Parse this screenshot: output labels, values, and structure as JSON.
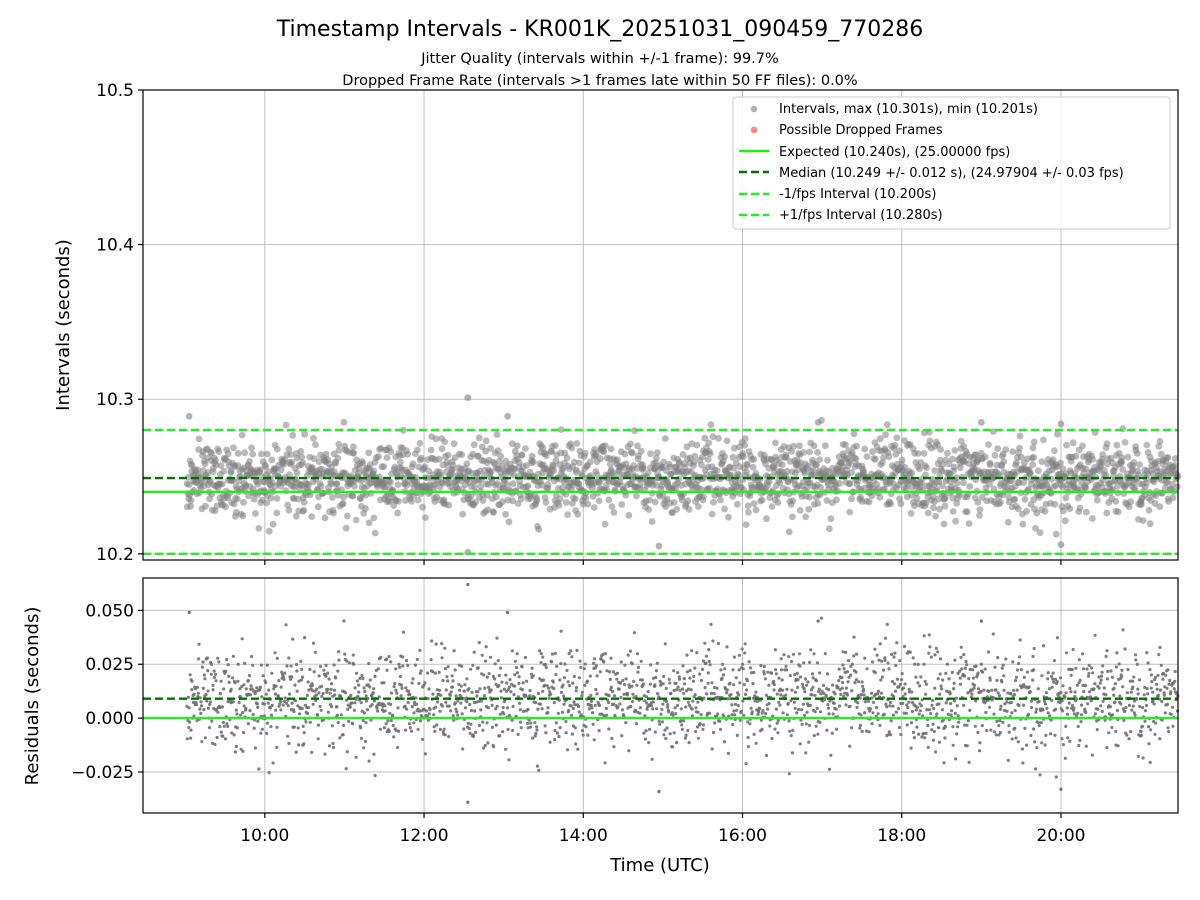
{
  "chart_data": [
    {
      "type": "scatter",
      "title": "Timestamp Intervals - KR001K_20251031_090459_770286",
      "subtitle_lines": [
        "Jitter Quality (intervals within +/-1 frame): 99.7%",
        "Dropped Frame Rate (intervals >1 frames late within 50 FF files): 0.0%"
      ],
      "ylabel": "Intervals (seconds)",
      "xlabel": "",
      "x_unit": "hours UTC",
      "xlim": [
        8.47,
        21.47
      ],
      "ylim": [
        10.196,
        10.5
      ],
      "yticks": [
        10.2,
        10.3,
        10.4,
        10.5
      ],
      "ytick_labels": [
        "10.2",
        "10.3",
        "10.4",
        "10.5"
      ],
      "grid": true,
      "legend_position": "top-right",
      "scatter": {
        "name": "Intervals, max (10.301s), min (10.201s)",
        "color": "#808080",
        "x_range": [
          9.02,
          21.47
        ],
        "count": 2300,
        "center": 10.249,
        "spread": 0.012,
        "max": 10.301,
        "min": 10.201,
        "notable_points": [
          {
            "x": 9.05,
            "y": 10.289
          },
          {
            "x": 12.55,
            "y": 10.301
          },
          {
            "x": 13.05,
            "y": 10.289
          },
          {
            "x": 16.95,
            "y": 10.285
          },
          {
            "x": 19.0,
            "y": 10.285
          },
          {
            "x": 20.0,
            "y": 10.284
          },
          {
            "x": 12.55,
            "y": 10.201
          },
          {
            "x": 14.95,
            "y": 10.205
          },
          {
            "x": 20.0,
            "y": 10.206
          }
        ]
      },
      "dropped_frames": {
        "name": "Possible Dropped Frames",
        "color": "#ff6666",
        "points": []
      },
      "lines": [
        {
          "name": "Expected (10.240s), (25.00000 fps)",
          "y": 10.24,
          "color": "#22ee22",
          "style": "solid"
        },
        {
          "name": "Median (10.249 +/- 0.012 s), (24.97904 +/- 0.03 fps)",
          "y": 10.249,
          "color": "#007000",
          "style": "dashed"
        },
        {
          "name": "-1/fps Interval (10.200s)",
          "y": 10.2,
          "color": "#22ee22",
          "style": "dashed"
        },
        {
          "name": "+1/fps Interval (10.280s)",
          "y": 10.28,
          "color": "#22ee22",
          "style": "dashed"
        }
      ],
      "legend": [
        "Intervals, max (10.301s), min (10.201s)",
        "Possible Dropped Frames",
        "Expected (10.240s), (25.00000 fps)",
        "Median (10.249 +/- 0.012 s), (24.97904 +/- 0.03 fps)",
        "-1/fps Interval (10.200s)",
        "+1/fps Interval (10.280s)"
      ]
    },
    {
      "type": "scatter",
      "title": "",
      "ylabel": "Residuals (seconds)",
      "xlabel": "Time (UTC)",
      "xlim": [
        8.47,
        21.47
      ],
      "ylim": [
        -0.044,
        0.065
      ],
      "yticks": [
        -0.025,
        0.0,
        0.025,
        0.05
      ],
      "ytick_labels": [
        "−0.025",
        "0.000",
        "0.025",
        "0.050"
      ],
      "xticks": [
        10,
        12,
        14,
        16,
        18,
        20
      ],
      "xtick_labels": [
        "10:00",
        "12:00",
        "14:00",
        "16:00",
        "18:00",
        "20:00"
      ],
      "grid": true,
      "scatter": {
        "color": "#707070",
        "center": 0.009,
        "spread": 0.012,
        "max": 0.062,
        "min": -0.039,
        "notable_points": [
          {
            "x": 9.05,
            "y": 0.049
          },
          {
            "x": 12.55,
            "y": 0.062
          },
          {
            "x": 13.05,
            "y": 0.049
          },
          {
            "x": 16.95,
            "y": 0.045
          },
          {
            "x": 19.0,
            "y": 0.045
          },
          {
            "x": 12.55,
            "y": -0.039
          },
          {
            "x": 14.95,
            "y": -0.034
          },
          {
            "x": 20.0,
            "y": -0.033
          }
        ]
      },
      "lines": [
        {
          "name": "Expected residual",
          "y": 0.0,
          "color": "#22ee22",
          "style": "solid"
        },
        {
          "name": "Median residual",
          "y": 0.009,
          "color": "#007000",
          "style": "dashed"
        }
      ]
    }
  ]
}
